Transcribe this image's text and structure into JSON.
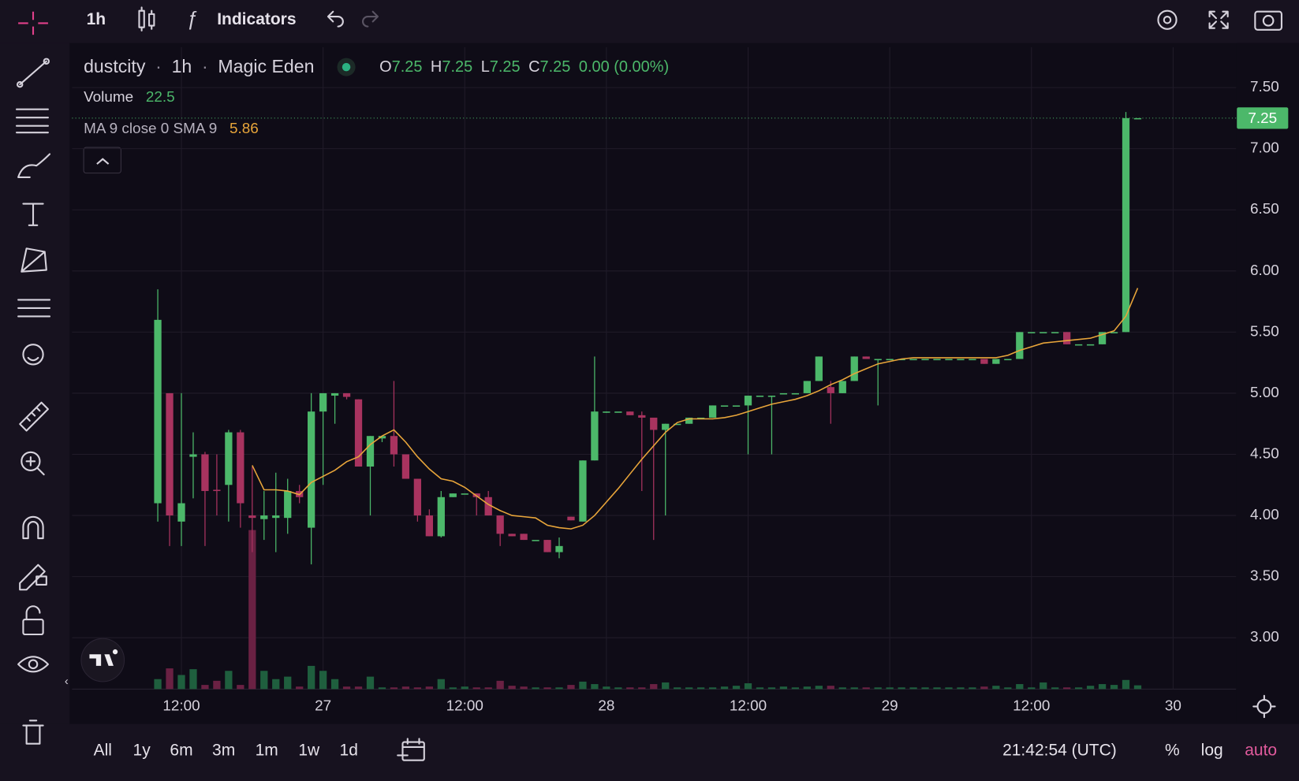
{
  "toolbar": {
    "interval": "1h",
    "indicators": "Indicators"
  },
  "ranges": [
    "All",
    "1y",
    "6m",
    "3m",
    "1m",
    "1w",
    "1d"
  ],
  "clock": "21:42:54 (UTC)",
  "scale_options": [
    "%",
    "log",
    "auto"
  ],
  "chart_data": {
    "type": "candlestick",
    "symbol": "dustcity",
    "interval": "1h",
    "exchange": "Magic Eden",
    "ohlc_letters": [
      "O",
      "H",
      "L",
      "C"
    ],
    "change_label": "0.00 (0.00%)",
    "volume_name": "Volume",
    "ma_name": "MA 9 close 0 SMA 9",
    "up_color": "#4cb86a",
    "down_color": "#a8335f",
    "volume_up_color": "#1f5f3e",
    "volume_down_color": "#6a2143",
    "ma_color": "#e8a53a",
    "grid": true,
    "xlim": [
      2.74,
      101.33
    ],
    "xticks": [
      {
        "value": 12,
        "label": "12:00"
      },
      {
        "value": 24,
        "label": "27"
      },
      {
        "value": 36,
        "label": "12:00"
      },
      {
        "value": 48,
        "label": "28"
      },
      {
        "value": 60,
        "label": "12:00"
      },
      {
        "value": 72,
        "label": "29"
      },
      {
        "value": 84,
        "label": "12:00"
      },
      {
        "value": 96,
        "label": "30"
      }
    ],
    "ylim": [
      2.58,
      7.83
    ],
    "yticks": [
      {
        "value": 3,
        "label": "3.00"
      },
      {
        "value": 3.5,
        "label": "3.50"
      },
      {
        "value": 4,
        "label": "4.00"
      },
      {
        "value": 4.5,
        "label": "4.50"
      },
      {
        "value": 5,
        "label": "5.00"
      },
      {
        "value": 5.5,
        "label": "5.50"
      },
      {
        "value": 6,
        "label": "6.00"
      },
      {
        "value": 6.5,
        "label": "6.50"
      },
      {
        "value": 7,
        "label": "7.00"
      },
      {
        "value": 7.5,
        "label": "7.50"
      }
    ],
    "y2lim": [
      0,
      3875
    ],
    "x": [
      10,
      11,
      12,
      13,
      14,
      15,
      16,
      17,
      18,
      19,
      20,
      21,
      22,
      23,
      24,
      25,
      26,
      27,
      28,
      29,
      30,
      31,
      32,
      33,
      34,
      35,
      36,
      37,
      38,
      39,
      40,
      41,
      42,
      43,
      44,
      45,
      46,
      47,
      48,
      49,
      50,
      51,
      52,
      53,
      54,
      55,
      56,
      57,
      58,
      59,
      60,
      61,
      62,
      63,
      64,
      65,
      66,
      67,
      68,
      69,
      70,
      71,
      72,
      73,
      74,
      75,
      76,
      77,
      78,
      79,
      80,
      81,
      82,
      83,
      84,
      85,
      86,
      87,
      88,
      89,
      90,
      91,
      92,
      93
    ],
    "open": [
      4.1,
      5.0,
      3.95,
      4.48,
      4.5,
      4.21,
      4.25,
      4.68,
      4.0,
      3.97,
      3.98,
      3.98,
      4.2,
      3.9,
      4.85,
      4.98,
      5.0,
      4.95,
      4.4,
      4.63,
      4.65,
      4.5,
      4.3,
      4.0,
      3.83,
      4.15,
      4.18,
      4.18,
      4.15,
      4.0,
      3.85,
      3.85,
      3.8,
      3.8,
      3.7,
      3.99,
      3.95,
      4.45,
      4.84,
      4.85,
      4.85,
      4.82,
      4.8,
      4.7,
      4.75,
      4.75,
      4.8,
      4.8,
      4.9,
      4.9,
      4.9,
      4.98,
      4.98,
      5.0,
      5.0,
      5.0,
      5.1,
      5.05,
      5.0,
      5.1,
      5.3,
      5.28,
      5.28,
      5.28,
      5.28,
      5.28,
      5.28,
      5.28,
      5.28,
      5.28,
      5.28,
      5.24,
      5.28,
      5.28,
      5.5,
      5.5,
      5.5,
      5.5,
      5.4,
      5.4,
      5.4,
      5.5,
      5.5,
      7.25
    ],
    "high": [
      5.85,
      5.0,
      5.0,
      4.68,
      4.52,
      4.5,
      4.7,
      4.7,
      4.4,
      4.2,
      4.35,
      4.3,
      4.25,
      5.0,
      5.0,
      5.0,
      5.0,
      4.95,
      4.65,
      4.65,
      5.1,
      4.5,
      4.3,
      4.05,
      4.2,
      4.18,
      4.18,
      4.18,
      4.2,
      4.0,
      3.85,
      3.85,
      3.8,
      3.8,
      3.82,
      3.99,
      4.45,
      5.3,
      4.85,
      4.85,
      4.85,
      4.85,
      4.8,
      4.75,
      4.75,
      4.8,
      4.8,
      4.9,
      4.9,
      4.9,
      4.98,
      4.98,
      4.98,
      5.0,
      5.0,
      5.1,
      5.3,
      5.1,
      5.1,
      5.3,
      5.3,
      5.28,
      5.28,
      5.28,
      5.28,
      5.28,
      5.28,
      5.28,
      5.28,
      5.28,
      5.28,
      5.28,
      5.28,
      5.5,
      5.5,
      5.5,
      5.5,
      5.5,
      5.4,
      5.4,
      5.5,
      5.5,
      7.3,
      7.25
    ],
    "low": [
      3.95,
      3.75,
      3.75,
      4.14,
      3.75,
      4.0,
      3.95,
      3.9,
      3.7,
      3.8,
      3.7,
      3.85,
      4.1,
      3.6,
      4.25,
      4.75,
      4.95,
      4.4,
      4.0,
      4.6,
      4.4,
      4.3,
      3.95,
      3.83,
      3.82,
      4.15,
      4.18,
      4.0,
      4.0,
      3.75,
      3.83,
      3.8,
      3.8,
      3.7,
      3.65,
      3.96,
      3.95,
      4.45,
      4.84,
      4.85,
      4.82,
      4.2,
      3.8,
      4.0,
      4.75,
      4.75,
      4.8,
      4.8,
      4.9,
      4.9,
      4.5,
      4.98,
      4.5,
      5.0,
      5.0,
      5.0,
      5.1,
      4.75,
      5.0,
      5.1,
      5.28,
      4.9,
      5.28,
      5.28,
      5.28,
      5.28,
      5.28,
      5.28,
      5.28,
      5.28,
      5.24,
      5.24,
      5.28,
      5.28,
      5.5,
      5.5,
      5.5,
      5.4,
      5.4,
      5.4,
      5.4,
      5.5,
      5.5,
      7.25
    ],
    "close": [
      5.6,
      4.0,
      4.1,
      4.5,
      4.2,
      4.2,
      4.68,
      4.1,
      3.98,
      4.0,
      4.0,
      4.2,
      4.15,
      4.85,
      5.0,
      5.0,
      4.97,
      4.4,
      4.65,
      4.65,
      4.5,
      4.3,
      4.0,
      3.83,
      4.15,
      4.18,
      4.18,
      4.15,
      4.0,
      3.85,
      3.83,
      3.8,
      3.8,
      3.7,
      3.75,
      3.96,
      4.45,
      4.85,
      4.85,
      4.85,
      4.82,
      4.8,
      4.7,
      4.75,
      4.75,
      4.8,
      4.8,
      4.9,
      4.9,
      4.9,
      4.98,
      4.98,
      4.98,
      5.0,
      5.0,
      5.1,
      5.3,
      5.0,
      5.1,
      5.3,
      5.28,
      5.28,
      5.28,
      5.28,
      5.28,
      5.28,
      5.28,
      5.28,
      5.28,
      5.28,
      5.24,
      5.28,
      5.28,
      5.5,
      5.5,
      5.5,
      5.5,
      5.4,
      5.4,
      5.4,
      5.5,
      5.5,
      7.25,
      7.25
    ],
    "volume": [
      60,
      125,
      85,
      120,
      25,
      50,
      110,
      25,
      960,
      110,
      60,
      75,
      15,
      140,
      110,
      60,
      15,
      15,
      75,
      10,
      10,
      15,
      10,
      15,
      60,
      10,
      15,
      10,
      10,
      50,
      20,
      15,
      10,
      10,
      10,
      25,
      45,
      30,
      15,
      10,
      10,
      10,
      30,
      40,
      10,
      10,
      10,
      10,
      15,
      20,
      35,
      10,
      10,
      15,
      10,
      15,
      20,
      20,
      10,
      10,
      10,
      10,
      10,
      10,
      10,
      10,
      10,
      10,
      10,
      10,
      15,
      20,
      10,
      30,
      10,
      40,
      10,
      10,
      10,
      20,
      30,
      25,
      55,
      22.5
    ],
    "ma": [
      null,
      null,
      null,
      null,
      null,
      null,
      null,
      null,
      4.41,
      4.21,
      4.21,
      4.2,
      4.17,
      4.27,
      4.32,
      4.37,
      4.44,
      4.48,
      4.58,
      4.65,
      4.7,
      4.6,
      4.48,
      4.38,
      4.3,
      4.28,
      4.23,
      4.16,
      4.09,
      4.04,
      4.0,
      3.99,
      3.98,
      3.92,
      3.9,
      3.89,
      3.92,
      4.0,
      4.11,
      4.22,
      4.34,
      4.46,
      4.57,
      4.68,
      4.76,
      4.79,
      4.79,
      4.79,
      4.8,
      4.82,
      4.85,
      4.88,
      4.91,
      4.93,
      4.95,
      4.98,
      5.02,
      5.07,
      5.11,
      5.16,
      5.2,
      5.24,
      5.26,
      5.28,
      5.29,
      5.29,
      5.29,
      5.29,
      5.29,
      5.29,
      5.29,
      5.29,
      5.31,
      5.35,
      5.38,
      5.41,
      5.42,
      5.43,
      5.44,
      5.45,
      5.48,
      5.51,
      5.63,
      5.86
    ]
  }
}
